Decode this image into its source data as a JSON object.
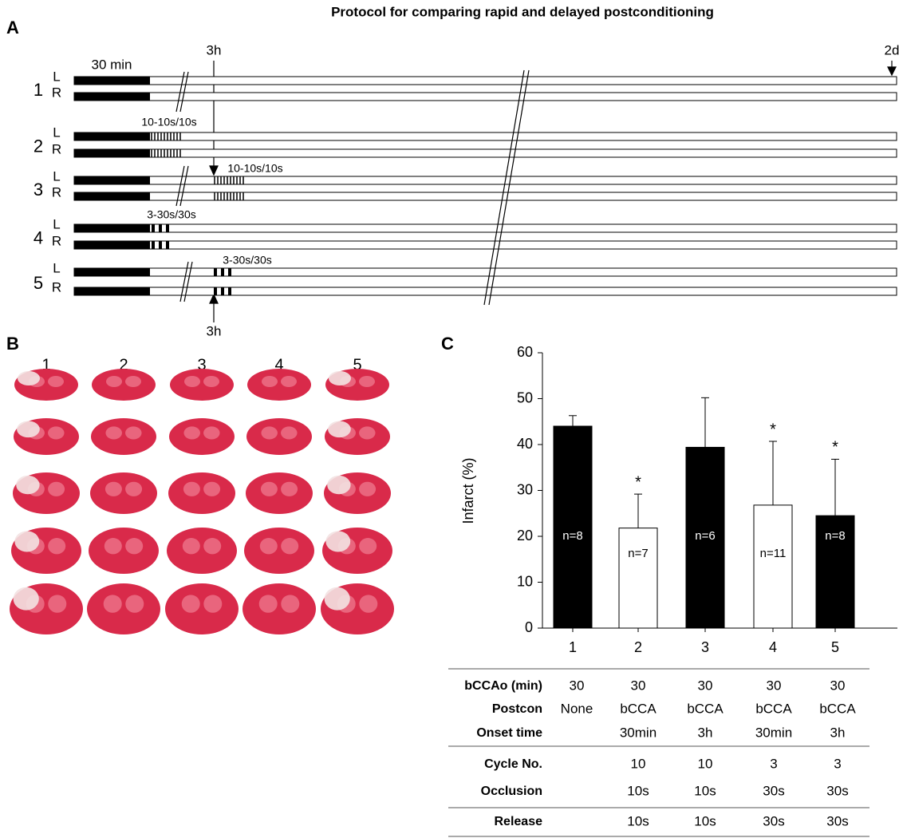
{
  "title": "Protocol for comparing rapid and delayed postconditioning",
  "panel_labels": [
    "A",
    "B",
    "C"
  ],
  "protocol": {
    "groups": [
      "1",
      "2",
      "3",
      "4",
      "5"
    ],
    "sides": [
      "L",
      "R"
    ],
    "ischemia": "30 min",
    "end": "2d",
    "delay_top": "3h",
    "delay_bottom": "3h",
    "postcon_labels": [
      "10-10s/10s",
      "10-10s/10s",
      "3-30s/30s",
      "3-30s/30s"
    ]
  },
  "slices": {
    "columns": [
      "1",
      "2",
      "3",
      "4",
      "5"
    ]
  },
  "chart_data": {
    "type": "bar",
    "categories": [
      "1",
      "2",
      "3",
      "4",
      "5"
    ],
    "values": [
      44,
      21.8,
      39.4,
      26.8,
      24.5
    ],
    "errors": [
      2.3,
      7.4,
      10.8,
      13.9,
      12.3
    ],
    "colors": [
      "#000000",
      "#ffffff",
      "#000000",
      "#ffffff",
      "#000000"
    ],
    "sample_sizes": [
      "n=8",
      "n=7",
      "n=6",
      "n=11",
      "n=8"
    ],
    "significance": [
      null,
      "*",
      null,
      "*",
      "*"
    ],
    "ylabel": "Infarct (%)",
    "ylim": [
      0,
      60
    ],
    "yticks": [
      0,
      10,
      20,
      30,
      40,
      50,
      60
    ]
  },
  "table": {
    "row_headers": [
      "bCCAo (min)",
      "Postcon",
      "Onset time",
      "Cycle No.",
      "Occlusion",
      "Release"
    ],
    "rows": [
      [
        "30",
        "30",
        "30",
        "30",
        "30"
      ],
      [
        "None",
        "bCCA",
        "bCCA",
        "bCCA",
        "bCCA"
      ],
      [
        null,
        "30min",
        "3h",
        "30min",
        "3h"
      ],
      [
        null,
        "10",
        "10",
        "3",
        "3"
      ],
      [
        null,
        "10s",
        "10s",
        "30s",
        "30s"
      ],
      [
        null,
        "10s",
        "10s",
        "30s",
        "30s"
      ]
    ]
  }
}
